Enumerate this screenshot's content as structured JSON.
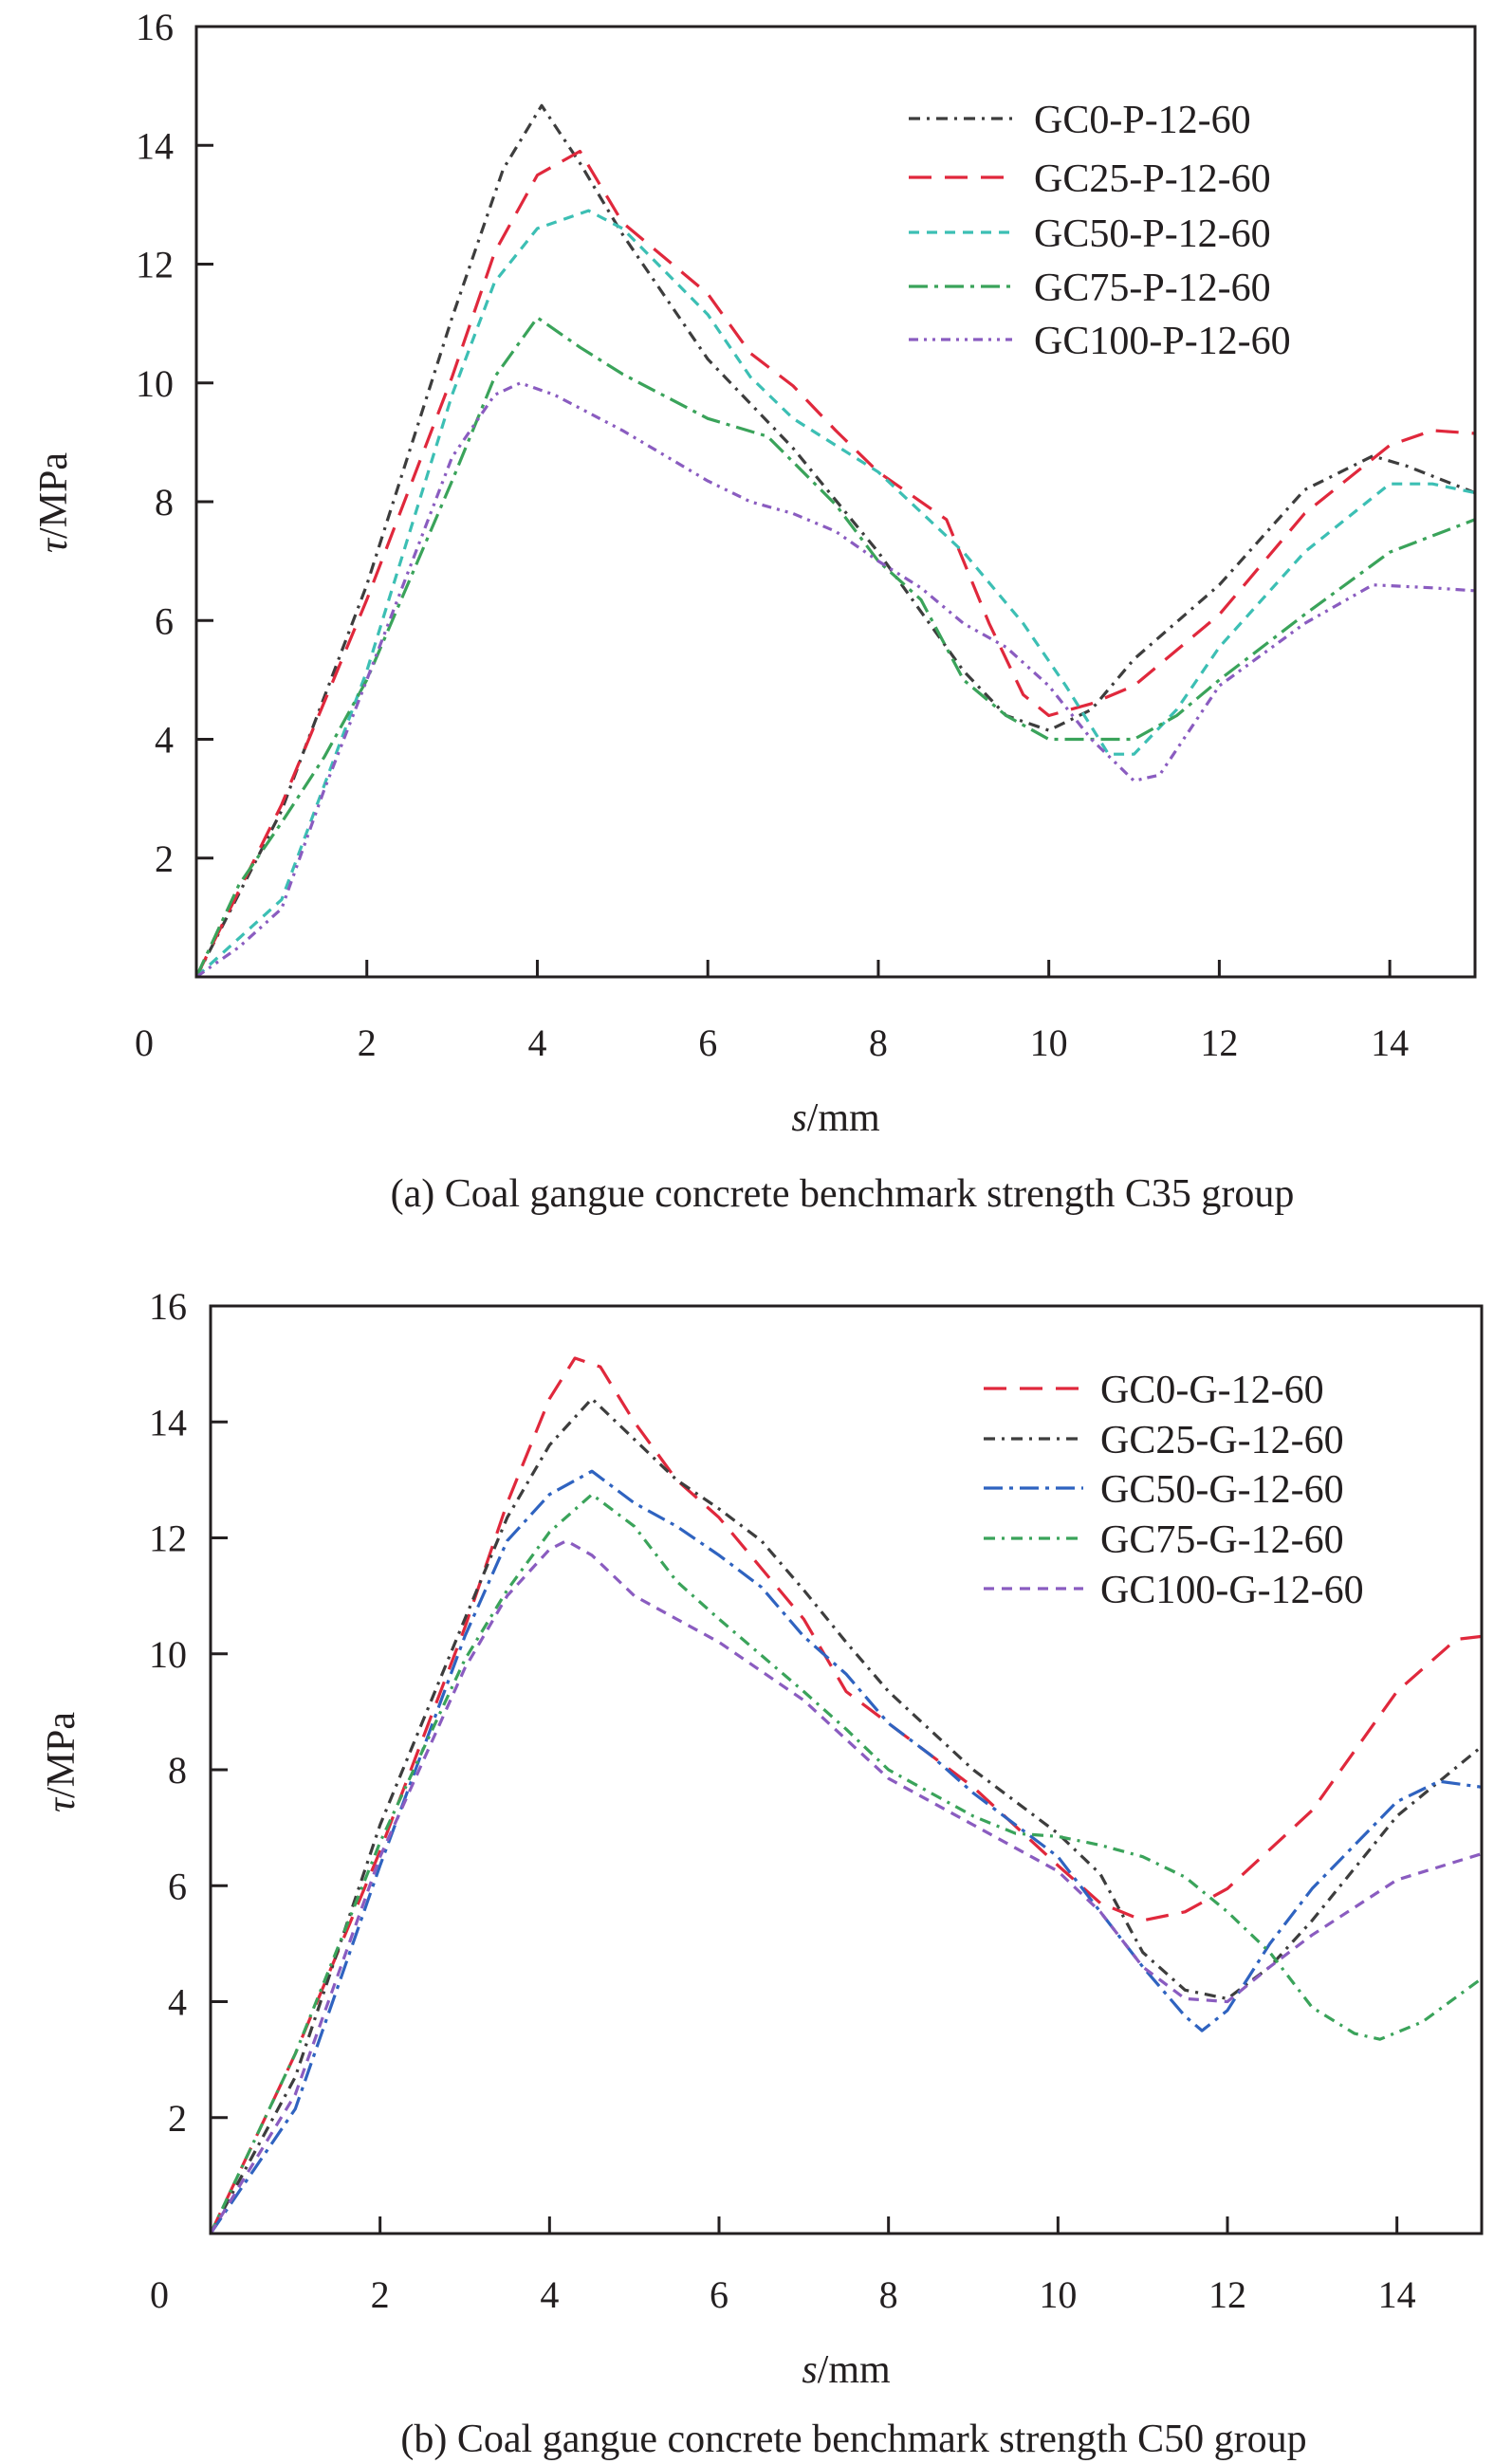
{
  "chart_data": [
    {
      "type": "line",
      "caption": "(a) Coal gangue concrete benchmark strength C35 group",
      "xlabel_italic": "s",
      "xlabel_unit": "/mm",
      "ylabel_italic": "τ",
      "ylabel_unit": "/MPa",
      "xlim": [
        0,
        15
      ],
      "ylim": [
        0,
        16
      ],
      "xticks": [
        "0",
        "2",
        "4",
        "6",
        "8",
        "10",
        "12",
        "14"
      ],
      "yticks": [
        "2",
        "4",
        "6",
        "8",
        "10",
        "12",
        "14",
        "16"
      ],
      "legend_position": "top-right",
      "series": [
        {
          "name": "GC0-P-12-60",
          "color": "#3d3d3d",
          "style": "dash-dot",
          "x": [
            0,
            1,
            1.3,
            2,
            3,
            3.6,
            4.05,
            4.5,
            5,
            6,
            7,
            8,
            9,
            9.5,
            10,
            10.5,
            11,
            12,
            13,
            13.8,
            14.2,
            15
          ],
          "y": [
            0,
            2.8,
            3.95,
            6.6,
            11.1,
            13.6,
            14.67,
            13.7,
            12.5,
            10.4,
            8.9,
            7.15,
            5.15,
            4.4,
            4.15,
            4.5,
            5.35,
            6.6,
            8.2,
            8.77,
            8.6,
            8.15
          ]
        },
        {
          "name": "GC25-P-12-60",
          "color": "#e0283c",
          "style": "dash",
          "x": [
            0,
            1,
            2,
            3,
            3.5,
            4,
            4.5,
            5,
            6,
            6.5,
            7,
            7.5,
            8,
            8.8,
            9.3,
            9.7,
            10,
            10.5,
            11,
            12,
            13,
            14,
            14.5,
            15
          ],
          "y": [
            0,
            2.9,
            6.35,
            10.1,
            12.2,
            13.5,
            13.9,
            12.7,
            11.5,
            10.5,
            9.95,
            9.2,
            8.5,
            7.7,
            5.95,
            4.75,
            4.4,
            4.6,
            4.9,
            6.1,
            7.8,
            8.95,
            9.2,
            9.15
          ]
        },
        {
          "name": "GC50-P-12-60",
          "color": "#3cbfb4",
          "style": "short-dash",
          "x": [
            0,
            1,
            2,
            3,
            3.5,
            4,
            4.6,
            5,
            6,
            6.5,
            7,
            8,
            9,
            9.7,
            10.2,
            10.7,
            11,
            11.5,
            12,
            13,
            14,
            14.5,
            15
          ],
          "y": [
            0,
            1.3,
            5.15,
            9.8,
            11.7,
            12.6,
            12.9,
            12.6,
            11.15,
            10.1,
            9.4,
            8.5,
            7.15,
            5.95,
            4.9,
            3.75,
            3.75,
            4.5,
            5.55,
            7.15,
            8.3,
            8.3,
            8.15
          ]
        },
        {
          "name": "GC75-P-12-60",
          "color": "#3aa35a",
          "style": "long-dash-dot",
          "x": [
            0,
            0.5,
            1,
            1.5,
            2,
            3,
            3.5,
            4,
            4.5,
            5,
            6,
            6.7,
            7.5,
            8,
            8.5,
            9,
            9.5,
            10,
            11,
            11.5,
            12,
            13,
            14,
            15
          ],
          "y": [
            0,
            1.55,
            2.6,
            3.7,
            5.0,
            8.35,
            10.1,
            11.1,
            10.6,
            10.15,
            9.4,
            9.1,
            7.95,
            7.0,
            6.35,
            5.0,
            4.4,
            4.0,
            4.0,
            4.4,
            5.0,
            6.1,
            7.15,
            7.7
          ]
        },
        {
          "name": "GC100-P-12-60",
          "color": "#8a5cc0",
          "style": "dash-dot-dot",
          "x": [
            0,
            0.5,
            1,
            1.5,
            2,
            3,
            3.5,
            3.8,
            4.2,
            5,
            6,
            6.5,
            7,
            7.5,
            8,
            8.5,
            9,
            9.5,
            10,
            10.5,
            11,
            11.3,
            12,
            13,
            13.8,
            14.5,
            15
          ],
          "y": [
            0,
            0.5,
            1.15,
            3.15,
            5.0,
            8.75,
            9.8,
            10.0,
            9.8,
            9.2,
            8.35,
            8.0,
            7.8,
            7.5,
            7.0,
            6.55,
            5.95,
            5.55,
            4.9,
            4.0,
            3.3,
            3.4,
            4.9,
            5.95,
            6.6,
            6.55,
            6.5
          ]
        }
      ]
    },
    {
      "type": "line",
      "caption": "(b) Coal gangue concrete benchmark strength C50 group",
      "xlabel_italic": "s",
      "xlabel_unit": "/mm",
      "ylabel_italic": "τ",
      "ylabel_unit": "/MPa",
      "xlim": [
        0,
        15
      ],
      "ylim": [
        0,
        16
      ],
      "xticks": [
        "0",
        "2",
        "4",
        "6",
        "8",
        "10",
        "12",
        "14"
      ],
      "yticks": [
        "2",
        "4",
        "6",
        "8",
        "10",
        "12",
        "14",
        "16"
      ],
      "legend_position": "top-right",
      "series": [
        {
          "name": "GC0-G-12-60",
          "color": "#e0283c",
          "style": "dash",
          "x": [
            0,
            1,
            2,
            3,
            3.5,
            4,
            4.3,
            4.6,
            5,
            5.5,
            6,
            7,
            7.5,
            8,
            9,
            10,
            10.5,
            11,
            11.5,
            12,
            13,
            14,
            14.7,
            15
          ],
          "y": [
            0,
            3.1,
            6.6,
            10.45,
            12.6,
            14.4,
            15.1,
            14.95,
            14.0,
            13.0,
            12.35,
            10.6,
            9.35,
            8.8,
            7.7,
            6.35,
            5.7,
            5.4,
            5.55,
            5.95,
            7.3,
            9.35,
            10.25,
            10.3
          ]
        },
        {
          "name": "GC25-G-12-60",
          "color": "#3d3d3d",
          "style": "dash-dot",
          "x": [
            0,
            1,
            2,
            3,
            3.5,
            4,
            4.5,
            5,
            5.5,
            6,
            6.5,
            7,
            7.5,
            8,
            9,
            10,
            10.5,
            11,
            11.5,
            12,
            12.5,
            13,
            14,
            15
          ],
          "y": [
            0,
            2.7,
            7.05,
            10.6,
            12.35,
            13.6,
            14.4,
            13.7,
            13.0,
            12.5,
            11.95,
            11.1,
            10.2,
            9.35,
            8.0,
            6.9,
            6.2,
            4.85,
            4.2,
            4.05,
            4.6,
            5.4,
            7.2,
            8.4
          ]
        },
        {
          "name": "GC50-G-12-60",
          "color": "#2f63c0",
          "style": "long-dash-dot",
          "x": [
            0,
            1,
            2,
            3,
            3.5,
            4,
            4.5,
            5,
            5.5,
            6,
            6.5,
            7,
            7.5,
            8,
            8.5,
            9,
            10,
            10.5,
            11,
            11.5,
            11.7,
            12,
            12.5,
            13,
            14,
            14.5,
            15
          ],
          "y": [
            0,
            2.15,
            6.35,
            10.3,
            11.95,
            12.75,
            13.15,
            12.6,
            12.2,
            11.7,
            11.15,
            10.3,
            9.65,
            8.8,
            8.25,
            7.6,
            6.5,
            5.55,
            4.6,
            3.75,
            3.5,
            3.85,
            5.0,
            5.95,
            7.45,
            7.8,
            7.7
          ]
        },
        {
          "name": "GC75-G-12-60",
          "color": "#3aa35a",
          "style": "dash-dot",
          "x": [
            0,
            1,
            2,
            3,
            3.5,
            4,
            4.5,
            5,
            5.5,
            6,
            7,
            7.5,
            8,
            9,
            9.5,
            10,
            10.5,
            11,
            11.5,
            12,
            12.5,
            13,
            13.5,
            13.8,
            14.3,
            15
          ],
          "y": [
            0,
            3.1,
            6.75,
            9.9,
            11.1,
            12.1,
            12.75,
            12.2,
            11.25,
            10.6,
            9.35,
            8.7,
            8.0,
            7.2,
            6.9,
            6.85,
            6.7,
            6.5,
            6.15,
            5.55,
            4.85,
            3.9,
            3.45,
            3.35,
            3.65,
            4.4
          ]
        },
        {
          "name": "GC100-G-12-60",
          "color": "#8a5cc0",
          "style": "short-dash",
          "x": [
            0,
            1,
            2,
            3,
            3.5,
            4,
            4.2,
            4.5,
            5,
            5.5,
            6,
            7,
            8,
            9,
            10,
            10.5,
            11,
            11.5,
            12,
            12.5,
            13,
            14,
            15
          ],
          "y": [
            0,
            2.4,
            6.5,
            9.75,
            11.0,
            11.8,
            11.95,
            11.7,
            11.0,
            10.6,
            10.2,
            9.2,
            7.85,
            7.05,
            6.25,
            5.55,
            4.6,
            4.05,
            4.0,
            4.6,
            5.15,
            6.1,
            6.55
          ]
        }
      ]
    }
  ]
}
